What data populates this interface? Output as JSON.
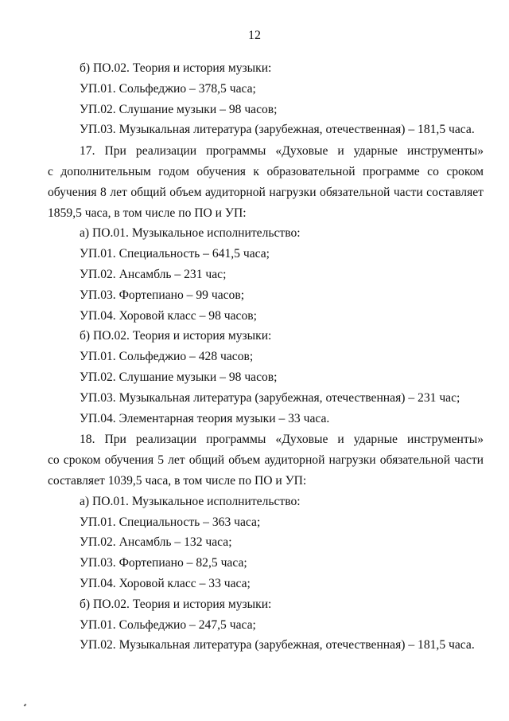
{
  "page_number": "12",
  "lines": [
    "б) ПО.02. Теория и история музыки:",
    "УП.01. Сольфеджио – 378,5 часа;",
    "УП.02. Слушание музыки – 98 часов;",
    "УП.03. Музыкальная литература (зарубежная, отечественная) – 181,5 часа.",
    "17. При реализации программы «Духовые и ударные инструменты»",
    "с дополнительным годом обучения к образовательной программе со сроком",
    "обучения 8 лет общий объем аудиторной нагрузки обязательной части составляет",
    "1859,5 часа, в том числе по ПО и УП:",
    "а) ПО.01. Музыкальное исполнительство:",
    "УП.01. Специальность – 641,5 часа;",
    "УП.02. Ансамбль – 231 час;",
    "УП.03. Фортепиано – 99 часов;",
    "УП.04. Хоровой класс – 98 часов;",
    "б) ПО.02. Теория и история музыки:",
    "УП.01. Сольфеджио – 428 часов;",
    "УП.02. Слушание музыки – 98 часов;",
    "УП.03. Музыкальная литература (зарубежная, отечественная) – 231 час;",
    "УП.04. Элементарная теория музыки – 33 часа.",
    "18. При реализации программы «Духовые и ударные инструменты»",
    "со сроком обучения 5 лет общий объем аудиторной нагрузки обязательной части",
    "составляет 1039,5 часа, в том числе по ПО и УП:",
    "а) ПО.01. Музыкальное исполнительство:",
    "УП.01. Специальность – 363 часа;",
    "УП.02. Ансамбль – 132 часа;",
    "УП.03. Фортепиано – 82,5 часа;",
    "УП.04. Хоровой класс – 33 часа;",
    "б) ПО.02. Теория и история музыки:",
    "УП.01. Сольфеджио – 247,5 часа;",
    "УП.02. Музыкальная литература (зарубежная, отечественная) – 181,5 часа."
  ]
}
